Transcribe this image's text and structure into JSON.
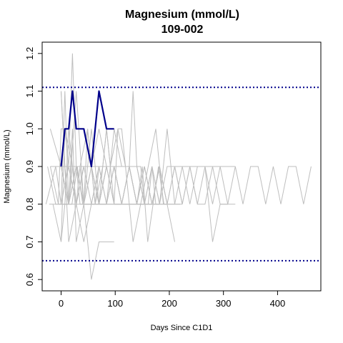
{
  "chart_data": {
    "type": "line",
    "title": "Magnesium (mmol/L)",
    "subtitle": "109-002",
    "xlabel": "Days Since C1D1",
    "ylabel": "Magnesium (mmol/L)",
    "xlim": [
      -35,
      480
    ],
    "ylim": [
      0.57,
      1.23
    ],
    "x_ticks": [
      0,
      100,
      200,
      300,
      400
    ],
    "y_ticks": [
      0.6,
      0.7,
      0.8,
      0.9,
      1.0,
      1.1,
      1.2
    ],
    "x_tick_labels": [
      "0",
      "100",
      "200",
      "300",
      "400"
    ],
    "y_tick_labels": [
      "0.6",
      "0.7",
      "0.8",
      "0.9",
      "1.0",
      "1.1",
      "1.2"
    ],
    "reference_lines": [
      {
        "y": 1.11,
        "style": "dotted",
        "color": "#00008b"
      },
      {
        "y": 0.65,
        "style": "dotted",
        "color": "#00008b"
      }
    ],
    "highlight_color": "#00008b",
    "background_color": "#bebebe",
    "series": [
      {
        "highlight": true,
        "x": [
          0,
          7,
          14,
          21,
          28,
          42,
          56,
          70,
          84,
          98
        ],
        "y": [
          0.9,
          1.0,
          1.0,
          1.1,
          1.0,
          1.0,
          0.9,
          1.1,
          1.0,
          1.0
        ]
      },
      {
        "x": [
          -28,
          -10,
          0,
          14,
          28,
          42,
          56,
          70,
          84,
          98,
          112,
          126,
          140,
          154,
          168,
          182,
          196,
          210,
          224,
          238,
          252,
          266,
          280,
          294,
          308,
          322,
          336,
          350,
          364,
          378,
          392,
          406,
          420,
          434,
          448,
          462
        ],
        "y": [
          0.8,
          0.9,
          0.9,
          0.9,
          0.8,
          0.9,
          0.8,
          0.9,
          0.8,
          0.9,
          0.8,
          0.9,
          0.8,
          0.9,
          0.8,
          0.9,
          0.8,
          0.9,
          0.8,
          0.9,
          0.8,
          0.8,
          0.9,
          0.8,
          0.8,
          0.9,
          0.8,
          0.9,
          0.9,
          0.8,
          0.9,
          0.8,
          0.9,
          0.9,
          0.8,
          0.9
        ]
      },
      {
        "x": [
          -25,
          -10,
          0,
          14,
          28,
          42,
          56,
          70,
          84,
          98,
          112,
          126,
          140,
          154,
          168,
          182,
          196,
          210,
          224,
          238,
          252,
          266,
          280,
          294,
          308,
          322
        ],
        "y": [
          0.9,
          0.8,
          0.8,
          0.8,
          0.9,
          0.8,
          0.8,
          0.8,
          0.9,
          0.8,
          0.8,
          0.8,
          0.8,
          0.8,
          0.8,
          0.8,
          0.9,
          0.9,
          0.9,
          0.9,
          0.9,
          0.9,
          0.9,
          0.9,
          0.9,
          0.9
        ]
      },
      {
        "x": [
          -20,
          0,
          14,
          28,
          42,
          56,
          70,
          84,
          98,
          112,
          126,
          140,
          154,
          168,
          182
        ],
        "y": [
          1.0,
          0.9,
          0.9,
          0.9,
          0.9,
          0.9,
          1.0,
          0.9,
          0.9,
          0.9,
          0.9,
          0.8,
          0.8,
          0.9,
          0.8
        ]
      },
      {
        "x": [
          -15,
          0,
          7,
          21,
          35,
          49,
          63,
          77,
          91,
          105,
          119,
          133,
          147,
          161,
          175,
          189
        ],
        "y": [
          0.8,
          0.7,
          1.0,
          0.9,
          0.9,
          1.0,
          0.8,
          0.9,
          0.9,
          1.0,
          0.9,
          0.7,
          0.8,
          0.9,
          1.0,
          0.8
        ]
      },
      {
        "x": [
          -10,
          0,
          7,
          14,
          21,
          28,
          42,
          56,
          70,
          84,
          98
        ],
        "y": [
          0.9,
          0.8,
          1.1,
          0.8,
          1.0,
          0.7,
          0.8,
          0.6,
          0.7,
          0.7,
          0.7
        ]
      },
      {
        "x": [
          -5,
          0,
          7,
          14,
          21,
          28,
          35,
          42,
          49,
          56,
          63,
          70,
          77,
          84,
          91,
          98
        ],
        "y": [
          0.8,
          1.0,
          1.0,
          0.9,
          1.2,
          0.9,
          0.8,
          0.8,
          0.9,
          1.0,
          0.9,
          0.8,
          0.9,
          1.0,
          0.9,
          0.9
        ]
      },
      {
        "x": [
          -20,
          -5,
          0,
          10,
          20,
          30,
          40,
          50,
          60,
          70,
          80,
          90,
          100,
          110,
          120,
          130,
          140,
          150,
          160,
          170,
          180,
          190,
          200,
          210,
          220
        ],
        "y": [
          0.9,
          0.8,
          0.8,
          0.8,
          0.8,
          0.9,
          0.8,
          0.8,
          0.8,
          0.8,
          0.8,
          0.8,
          0.8,
          0.8,
          0.8,
          0.8,
          0.8,
          0.9,
          0.7,
          0.8,
          0.9,
          0.8,
          0.8,
          0.8,
          0.8
        ]
      },
      {
        "x": [
          0,
          7,
          14,
          21,
          28,
          42,
          56,
          70,
          84,
          98,
          112,
          126,
          140,
          154,
          168,
          182,
          196
        ],
        "y": [
          0.7,
          0.8,
          1.0,
          0.9,
          0.8,
          0.9,
          0.9,
          0.9,
          0.9,
          0.9,
          0.9,
          0.9,
          0.9,
          0.8,
          0.8,
          0.8,
          0.8
        ]
      },
      {
        "x": [
          -22,
          0,
          14,
          28,
          42,
          56,
          70,
          84,
          98,
          112,
          126,
          140,
          154,
          168,
          182,
          196,
          210
        ],
        "y": [
          0.8,
          0.8,
          0.9,
          0.8,
          0.9,
          0.9,
          0.8,
          0.9,
          0.8,
          0.8,
          0.9,
          0.8,
          0.8,
          0.9,
          0.8,
          0.8,
          0.7
        ]
      },
      {
        "x": [
          0,
          14,
          28,
          42,
          56,
          70,
          84,
          98,
          112,
          126,
          140,
          154,
          168,
          182,
          196,
          210,
          224
        ],
        "y": [
          0.8,
          0.8,
          0.8,
          0.8,
          0.8,
          0.8,
          0.9,
          0.9,
          0.9,
          0.9,
          0.9,
          0.8,
          0.8,
          0.8,
          1.0,
          0.8,
          0.8
        ]
      },
      {
        "x": [
          -15,
          0,
          14,
          28,
          42,
          56,
          70,
          84,
          98,
          112,
          126,
          140,
          154,
          168,
          182,
          196,
          210,
          224,
          238,
          252,
          266,
          280,
          294,
          308
        ],
        "y": [
          0.9,
          0.9,
          0.8,
          0.9,
          0.8,
          0.8,
          0.8,
          0.9,
          0.9,
          0.8,
          0.9,
          0.8,
          0.9,
          0.8,
          0.9,
          0.8,
          0.8,
          0.9,
          0.8,
          0.9,
          0.9,
          0.7,
          0.8,
          0.8
        ]
      },
      {
        "x": [
          0,
          7,
          14,
          21,
          28,
          35,
          42,
          49,
          56,
          63,
          70,
          77,
          84,
          91,
          98,
          105,
          112,
          119,
          126,
          133,
          140,
          147,
          154,
          161,
          168,
          175,
          182
        ],
        "y": [
          1.1,
          0.9,
          0.8,
          0.9,
          0.8,
          0.9,
          0.8,
          1.0,
          0.9,
          0.8,
          0.9,
          0.9,
          1.0,
          0.9,
          0.8,
          1.0,
          1.0,
          0.9,
          0.9,
          1.1,
          0.9,
          0.9,
          0.8,
          0.8,
          0.9,
          0.8,
          0.8
        ]
      },
      {
        "x": [
          0,
          14,
          28,
          42,
          56,
          70,
          84,
          98,
          112,
          126,
          140,
          154,
          168
        ],
        "y": [
          1.1,
          0.7,
          0.8,
          0.7,
          0.8,
          0.9,
          0.8,
          0.9,
          0.8,
          0.8,
          0.8,
          0.8,
          0.8
        ]
      },
      {
        "x": [
          -15,
          0,
          14,
          28,
          42,
          56,
          70,
          84,
          98,
          112,
          126,
          140,
          154,
          168
        ],
        "y": [
          0.9,
          0.9,
          0.8,
          1.1,
          0.8,
          0.9,
          0.8,
          0.8,
          1.0,
          0.9,
          0.9,
          0.8,
          0.8,
          0.8
        ]
      },
      {
        "x": [
          -20,
          0,
          14,
          28,
          42,
          56,
          70,
          84,
          98,
          112,
          126,
          140
        ],
        "y": [
          0.9,
          0.9,
          0.8,
          0.9,
          0.9,
          0.9,
          0.8,
          0.8,
          0.8,
          0.8,
          0.9,
          0.9
        ]
      },
      {
        "x": [
          0,
          14,
          28,
          42,
          56,
          70,
          84,
          98,
          112,
          126,
          140,
          154,
          168,
          182,
          196,
          210,
          224,
          238,
          252,
          266,
          280,
          294,
          308,
          322
        ],
        "y": [
          0.8,
          0.8,
          0.9,
          0.8,
          0.9,
          0.8,
          0.8,
          0.9,
          0.8,
          0.9,
          0.8,
          0.9,
          0.8,
          0.9,
          0.8,
          0.9,
          0.8,
          0.9,
          0.8,
          0.9,
          0.8,
          0.9,
          0.8,
          0.8
        ]
      }
    ]
  }
}
